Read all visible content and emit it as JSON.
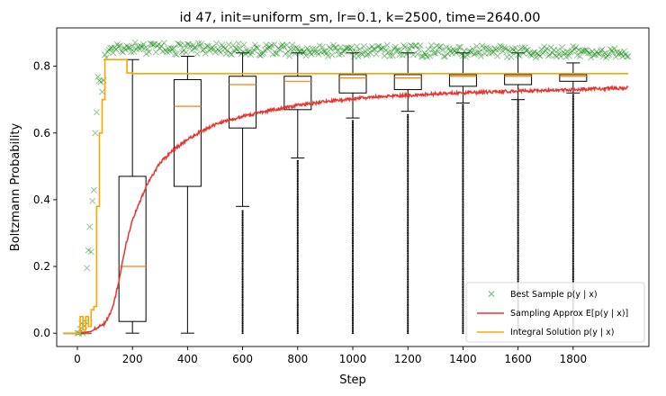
{
  "chart_data": {
    "type": "line",
    "title": "id 47, init=uniform_sm, lr=0.1, k=2500, time=2640.00",
    "xlabel": "Step",
    "ylabel": "Boltzmann Probability",
    "xlim": [
      -75,
      2075
    ],
    "ylim": [
      -0.04,
      0.915
    ],
    "x_ticks": [
      0,
      200,
      400,
      600,
      800,
      1000,
      1200,
      1400,
      1600,
      1800
    ],
    "y_ticks": [
      0.0,
      0.2,
      0.4,
      0.6,
      0.8
    ],
    "y_tick_labels": [
      "0.0",
      "0.2",
      "0.4",
      "0.6",
      "0.8"
    ],
    "legend_position": "lower-right",
    "colors": {
      "best_sample": "#008000",
      "sampling_approx": "#e8352e",
      "integral_solution": "#ffa500",
      "box": "#000000",
      "median": "#ff7f0e"
    },
    "series": [
      {
        "name": "Best Sample p(y | x)",
        "marker": "x",
        "note_points": "plateau after step ~100",
        "x": [
          0,
          10,
          20,
          30,
          40,
          50,
          60,
          70,
          80,
          90,
          100,
          120,
          150,
          200,
          300,
          400,
          600,
          800,
          1000,
          1200,
          1400,
          1600,
          1800,
          2000
        ],
        "y": [
          0.0,
          0.01,
          0.03,
          0.08,
          0.18,
          0.32,
          0.5,
          0.66,
          0.75,
          0.8,
          0.83,
          0.845,
          0.85,
          0.855,
          0.853,
          0.852,
          0.85,
          0.848,
          0.847,
          0.846,
          0.845,
          0.844,
          0.843,
          0.842
        ]
      },
      {
        "name": "Sampling Approx E[p(y | x)]",
        "x": [
          0,
          50,
          100,
          125,
          150,
          175,
          200,
          250,
          300,
          350,
          400,
          450,
          500,
          600,
          700,
          800,
          900,
          1000,
          1100,
          1200,
          1300,
          1400,
          1500,
          1600,
          1700,
          1800,
          1900,
          2000
        ],
        "y": [
          0.0,
          0.005,
          0.03,
          0.07,
          0.15,
          0.26,
          0.34,
          0.44,
          0.51,
          0.55,
          0.58,
          0.605,
          0.625,
          0.65,
          0.668,
          0.683,
          0.694,
          0.703,
          0.709,
          0.713,
          0.717,
          0.72,
          0.723,
          0.726,
          0.728,
          0.73,
          0.733,
          0.735
        ]
      },
      {
        "name": "Integral Solution p(y | x)",
        "step": true,
        "x": [
          -50,
          0,
          10,
          20,
          30,
          40,
          50,
          60,
          70,
          80,
          90,
          100,
          180,
          200,
          2000
        ],
        "y": [
          0.0,
          0.0,
          0.05,
          0.01,
          0.05,
          0.02,
          0.07,
          0.08,
          0.38,
          0.6,
          0.7,
          0.82,
          0.78,
          0.778,
          0.778
        ]
      }
    ],
    "boxplots": [
      {
        "x": 0,
        "min": 0.0,
        "q1": 0.0,
        "median": 0.0,
        "q3": 0.0,
        "max": 0.0,
        "outliers": "none"
      },
      {
        "x": 200,
        "min": 0.0,
        "q1": 0.035,
        "median": 0.2,
        "q3": 0.47,
        "max": 0.82,
        "outliers": "none"
      },
      {
        "x": 400,
        "min": 0.0,
        "q1": 0.44,
        "median": 0.68,
        "q3": 0.76,
        "max": 0.83,
        "outliers": "none"
      },
      {
        "x": 600,
        "min": 0.38,
        "q1": 0.615,
        "median": 0.745,
        "q3": 0.77,
        "max": 0.84,
        "outliers_below": [
          0.0,
          0.37
        ]
      },
      {
        "x": 800,
        "min": 0.525,
        "q1": 0.67,
        "median": 0.755,
        "q3": 0.77,
        "max": 0.84,
        "outliers_below": [
          0.0,
          0.52
        ]
      },
      {
        "x": 1000,
        "min": 0.645,
        "q1": 0.72,
        "median": 0.765,
        "q3": 0.775,
        "max": 0.84,
        "outliers_below": [
          0.0,
          0.64
        ]
      },
      {
        "x": 1200,
        "min": 0.665,
        "q1": 0.73,
        "median": 0.765,
        "q3": 0.775,
        "max": 0.84,
        "outliers_below": [
          0.0,
          0.66
        ]
      },
      {
        "x": 1400,
        "min": 0.69,
        "q1": 0.74,
        "median": 0.77,
        "q3": 0.775,
        "max": 0.84,
        "outliers_below": [
          0.0,
          0.69
        ]
      },
      {
        "x": 1600,
        "min": 0.7,
        "q1": 0.745,
        "median": 0.77,
        "q3": 0.775,
        "max": 0.84,
        "outliers_below": [
          0.0,
          0.7
        ]
      },
      {
        "x": 1800,
        "min": 0.72,
        "q1": 0.755,
        "median": 0.77,
        "q3": 0.775,
        "max": 0.81,
        "outliers_below": [
          0.0,
          0.72
        ]
      }
    ]
  }
}
